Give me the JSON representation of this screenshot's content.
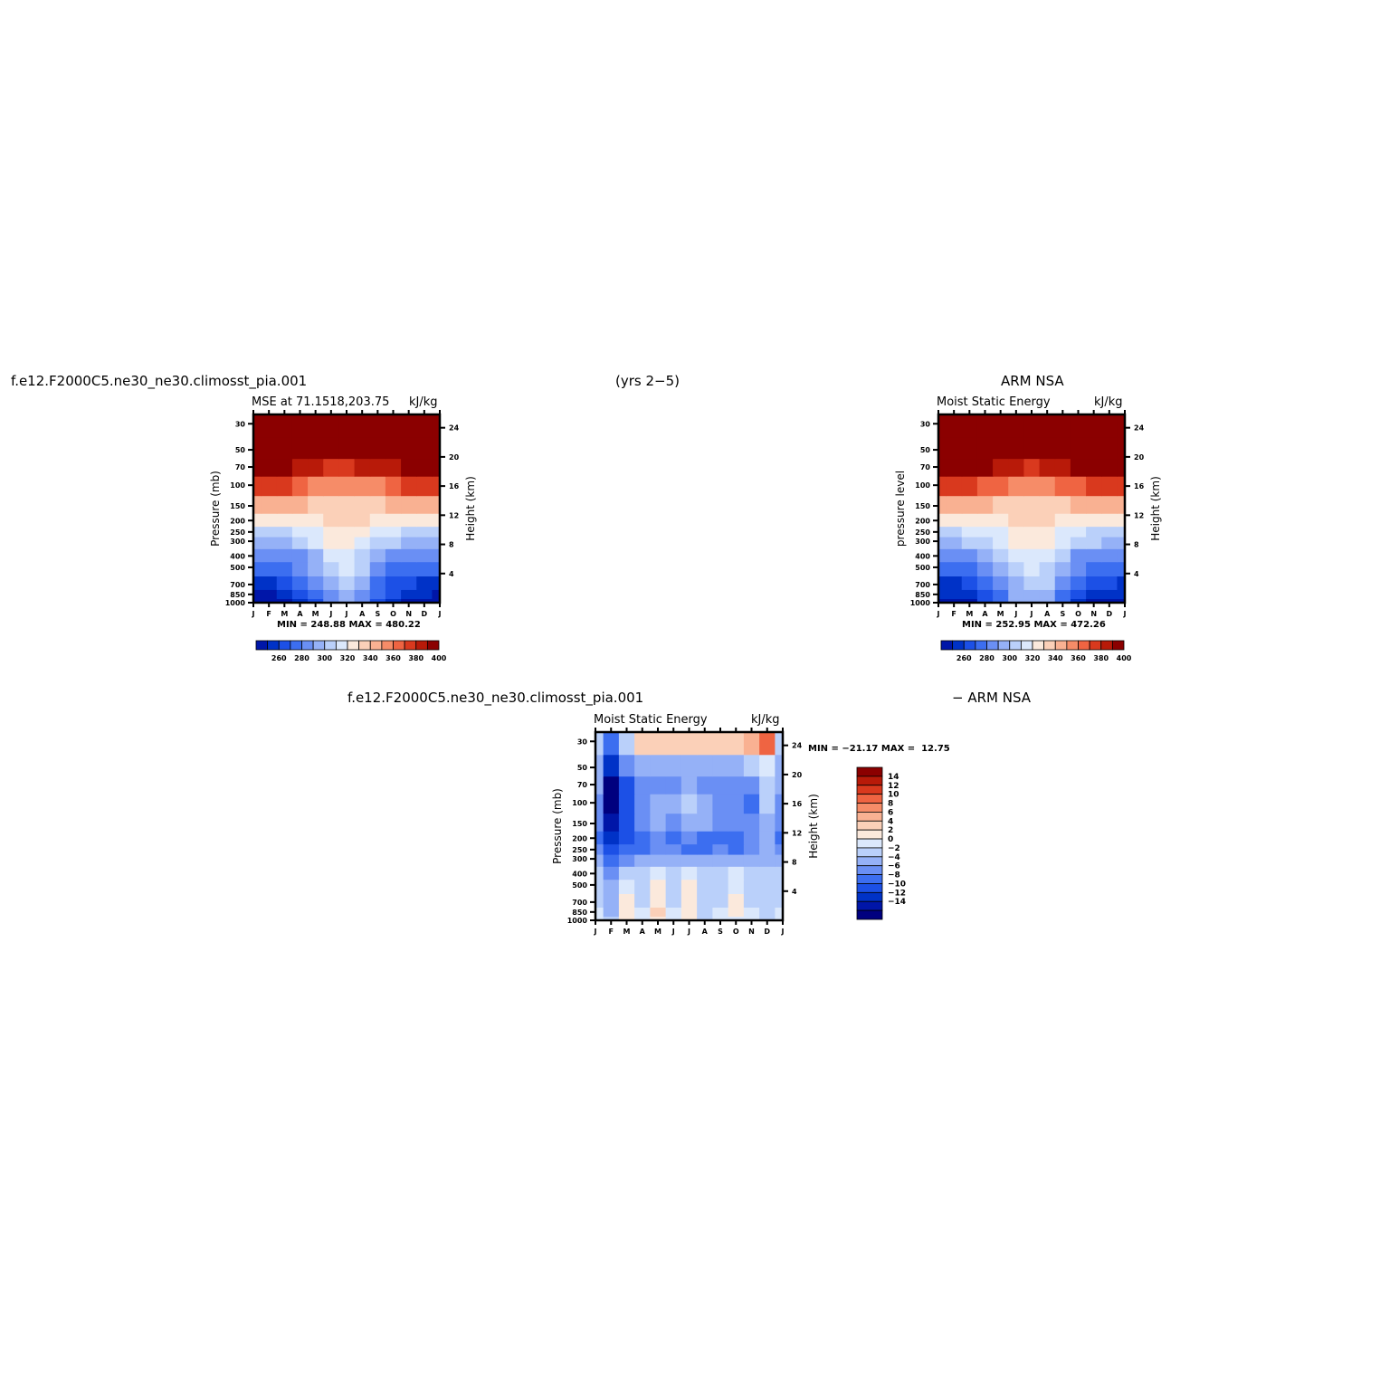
{
  "header": {
    "case_name": "f.e12.F2000C5.ne30_ne30.climosst_pia.001",
    "years": "(yrs 2−5)",
    "obs_name": "ARM NSA",
    "diff_case_name": "f.e12.F2000C5.ne30_ne30.climosst_pia.001",
    "diff_obs_name": "− ARM NSA"
  },
  "panels": {
    "model": {
      "title_left": "MSE at 71.1518,203.75",
      "title_right": "kJ/kg",
      "ylabel": "Pressure (mb)",
      "y2label": "Height (km)",
      "minmax": "MIN = 248.88 MAX = 480.22"
    },
    "obs": {
      "title_left": "Moist Static Energy",
      "title_right": "kJ/kg",
      "ylabel": "pressure level",
      "y2label": "Height (km)",
      "minmax": "MIN = 252.95 MAX = 472.26"
    },
    "diff": {
      "title_left": "Moist Static Energy",
      "title_right": "kJ/kg",
      "ylabel": "Pressure (mb)",
      "y2label": "Height (km)",
      "minmax": "MIN = −21.17 MAX =  12.75"
    }
  },
  "colors": {
    "abs_levels": [
      "#00007f",
      "#0016a8",
      "#0032c7",
      "#1c50e6",
      "#3c6ef0",
      "#6a8ff4",
      "#95b1f7",
      "#bad0fa",
      "#dbe8fc",
      "#fbe9dc",
      "#fbd0b8",
      "#f9b192",
      "#f68c68",
      "#ef6442",
      "#d9391e",
      "#b81a09",
      "#8b0000"
    ],
    "diff_levels": [
      "#00007f",
      "#0016a8",
      "#0032c7",
      "#1c50e6",
      "#3c6ef0",
      "#6a8ff4",
      "#95b1f7",
      "#bad0fa",
      "#dbe8fc",
      "#fbe9dc",
      "#fbd0b8",
      "#f9b192",
      "#f68c68",
      "#ef6442",
      "#d9391e",
      "#b81a09",
      "#8b0000"
    ]
  },
  "chart_data": [
    {
      "type": "heatmap",
      "name": "MSE at 71.1518,203.75",
      "x_ticklabels": [
        "J",
        "F",
        "M",
        "A",
        "M",
        "J",
        "J",
        "A",
        "S",
        "O",
        "N",
        "D",
        "J"
      ],
      "y_ticklabels": [
        "30",
        "50",
        "70",
        "100",
        "150",
        "200",
        "250",
        "300",
        "400",
        "500",
        "700",
        "850",
        "1000"
      ],
      "y_ticks_mb": [
        30,
        50,
        70,
        100,
        150,
        200,
        250,
        300,
        400,
        500,
        700,
        850,
        1000
      ],
      "y2_ticklabels": [
        "4",
        "8",
        "12",
        "16",
        "20",
        "24"
      ],
      "y2_ticks_km": [
        4,
        8,
        12,
        16,
        20,
        24
      ],
      "levels_mb": [
        1000,
        850,
        700,
        500,
        400,
        300,
        250,
        200,
        150,
        100,
        70,
        50,
        30
      ],
      "months": [
        "J",
        "F",
        "M",
        "A",
        "M",
        "J",
        "J",
        "A",
        "S",
        "O",
        "N",
        "D",
        "J"
      ],
      "z": [
        [
          256,
          256,
          258,
          263,
          270,
          285,
          295,
          285,
          268,
          262,
          258,
          257,
          256
        ],
        [
          260,
          260,
          262,
          268,
          276,
          290,
          298,
          288,
          272,
          266,
          262,
          261,
          260
        ],
        [
          264,
          264,
          266,
          272,
          281,
          296,
          305,
          294,
          278,
          270,
          266,
          265,
          264
        ],
        [
          274,
          274,
          276,
          282,
          292,
          308,
          316,
          304,
          288,
          280,
          276,
          275,
          274
        ],
        [
          282,
          282,
          284,
          290,
          300,
          313,
          320,
          310,
          296,
          288,
          284,
          283,
          282
        ],
        [
          298,
          298,
          300,
          305,
          312,
          322,
          326,
          320,
          310,
          303,
          300,
          299,
          298
        ],
        [
          308,
          308,
          309,
          313,
          318,
          326,
          330,
          325,
          318,
          312,
          309,
          308,
          308
        ],
        [
          322,
          322,
          322,
          325,
          328,
          334,
          336,
          333,
          329,
          325,
          323,
          322,
          322
        ],
        [
          345,
          344,
          344,
          341,
          338,
          335,
          334,
          336,
          338,
          341,
          343,
          345,
          345
        ],
        [
          375,
          374,
          372,
          366,
          360,
          354,
          352,
          355,
          360,
          366,
          371,
          375,
          375
        ],
        [
          400,
          398,
          396,
          390,
          385,
          380,
          378,
          381,
          385,
          390,
          396,
          400,
          400
        ],
        [
          420,
          418,
          416,
          410,
          405,
          400,
          398,
          402,
          406,
          412,
          418,
          420,
          420
        ],
        [
          460,
          460,
          458,
          455,
          452,
          450,
          450,
          452,
          455,
          458,
          460,
          460,
          460
        ]
      ],
      "colorbar_labels": [
        "260",
        "280",
        "300",
        "320",
        "340",
        "360",
        "380",
        "400"
      ],
      "minmax": "MIN = 248.88 MAX = 480.22"
    },
    {
      "type": "heatmap",
      "name": "Moist Static Energy (ARM NSA)",
      "x_ticklabels": [
        "J",
        "F",
        "M",
        "A",
        "M",
        "J",
        "J",
        "A",
        "S",
        "O",
        "N",
        "D",
        "J"
      ],
      "y_ticklabels": [
        "30",
        "50",
        "70",
        "100",
        "150",
        "200",
        "250",
        "300",
        "400",
        "500",
        "700",
        "850",
        "1000"
      ],
      "y2_ticklabels": [
        "4",
        "8",
        "12",
        "16",
        "20",
        "24"
      ],
      "levels_mb": [
        1000,
        850,
        700,
        500,
        400,
        300,
        250,
        200,
        150,
        100,
        70,
        50,
        30
      ],
      "z": [
        [
          257,
          257,
          260,
          266,
          276,
          292,
          298,
          294,
          276,
          264,
          260,
          258,
          257
        ],
        [
          261,
          261,
          264,
          270,
          280,
          295,
          300,
          296,
          280,
          268,
          263,
          262,
          261
        ],
        [
          265,
          265,
          268,
          275,
          286,
          300,
          306,
          301,
          285,
          272,
          267,
          266,
          265
        ],
        [
          275,
          275,
          278,
          284,
          294,
          308,
          314,
          309,
          293,
          282,
          277,
          276,
          275
        ],
        [
          284,
          284,
          286,
          292,
          302,
          314,
          318,
          315,
          301,
          290,
          285,
          284,
          284
        ],
        [
          300,
          300,
          302,
          306,
          313,
          322,
          325,
          323,
          314,
          305,
          301,
          300,
          300
        ],
        [
          310,
          310,
          311,
          314,
          319,
          326,
          328,
          326,
          320,
          313,
          310,
          310,
          310
        ],
        [
          324,
          324,
          324,
          326,
          329,
          334,
          336,
          335,
          330,
          326,
          324,
          324,
          324
        ],
        [
          346,
          345,
          345,
          342,
          339,
          336,
          335,
          337,
          339,
          342,
          344,
          346,
          346
        ],
        [
          376,
          375,
          373,
          368,
          362,
          356,
          354,
          357,
          362,
          368,
          372,
          376,
          376
        ],
        [
          400,
          398,
          397,
          392,
          387,
          382,
          380,
          383,
          387,
          392,
          397,
          400,
          400
        ],
        [
          420,
          418,
          417,
          412,
          407,
          402,
          400,
          404,
          408,
          413,
          418,
          420,
          420
        ],
        [
          458,
          458,
          456,
          454,
          451,
          449,
          449,
          451,
          454,
          456,
          458,
          458,
          458
        ]
      ],
      "colorbar_labels": [
        "260",
        "280",
        "300",
        "320",
        "340",
        "360",
        "380",
        "400"
      ],
      "minmax": "MIN = 252.95 MAX = 472.26"
    },
    {
      "type": "heatmap",
      "name": "Moist Static Energy difference",
      "x_ticklabels": [
        "J",
        "F",
        "M",
        "A",
        "M",
        "J",
        "J",
        "A",
        "S",
        "O",
        "N",
        "D",
        "J"
      ],
      "y_ticklabels": [
        "30",
        "50",
        "70",
        "100",
        "150",
        "200",
        "250",
        "300",
        "400",
        "500",
        "700",
        "850",
        "1000"
      ],
      "y2_ticklabels": [
        "4",
        "8",
        "12",
        "16",
        "20",
        "24"
      ],
      "levels_mb": [
        1000,
        850,
        700,
        500,
        400,
        300,
        250,
        200,
        150,
        100,
        70,
        50,
        30
      ],
      "z": [
        [
          -1,
          -3,
          1,
          -1,
          2,
          -1,
          1,
          -2,
          -1,
          0,
          -1,
          -2,
          -1
        ],
        [
          -1,
          -4,
          2,
          -1,
          3,
          -1,
          2,
          -2,
          -1,
          1,
          -1,
          -2,
          -1
        ],
        [
          -2,
          -4,
          1,
          -2,
          2,
          -2,
          1,
          -2,
          -2,
          1,
          -2,
          -3,
          -2
        ],
        [
          -2,
          -5,
          -1,
          -2,
          1,
          -2,
          1,
          -3,
          -2,
          0,
          -2,
          -3,
          -2
        ],
        [
          -3,
          -7,
          -2,
          -3,
          -1,
          -2,
          -1,
          -3,
          -2,
          -1,
          -2,
          -3,
          -3
        ],
        [
          -4,
          -9,
          -6,
          -5,
          -4,
          -4,
          -4,
          -5,
          -4,
          -4,
          -4,
          -4,
          -4
        ],
        [
          -7,
          -11,
          -8,
          -8,
          -7,
          -7,
          -8,
          -8,
          -7,
          -8,
          -7,
          -5,
          -7
        ],
        [
          -8,
          -13,
          -10,
          -9,
          -7,
          -8,
          -7,
          -9,
          -8,
          -9,
          -7,
          -5,
          -8
        ],
        [
          -7,
          -14,
          -10,
          -6,
          -5,
          -6,
          -4,
          -5,
          -6,
          -6,
          -6,
          -4,
          -7
        ],
        [
          -6,
          -16,
          -11,
          -6,
          -5,
          -5,
          -3,
          -5,
          -6,
          -6,
          -8,
          -3,
          -6
        ],
        [
          -5,
          -16,
          -11,
          -6,
          -6,
          -6,
          -5,
          -6,
          -6,
          -6,
          -6,
          -3,
          -5
        ],
        [
          -4,
          -12,
          -6,
          -4,
          -4,
          -4,
          -4,
          -4,
          -4,
          -4,
          -3,
          0,
          -4
        ],
        [
          -3,
          -8,
          -3,
          3,
          3,
          4,
          3,
          4,
          3,
          3,
          5,
          9,
          -3
        ]
      ],
      "colorbar_labels": [
        "14",
        "12",
        "10",
        "8",
        "6",
        "4",
        "2",
        "0",
        "−2",
        "−4",
        "−6",
        "−8",
        "−10",
        "−12",
        "−14"
      ],
      "minmax": "MIN = −21.17 MAX =  12.75"
    }
  ]
}
